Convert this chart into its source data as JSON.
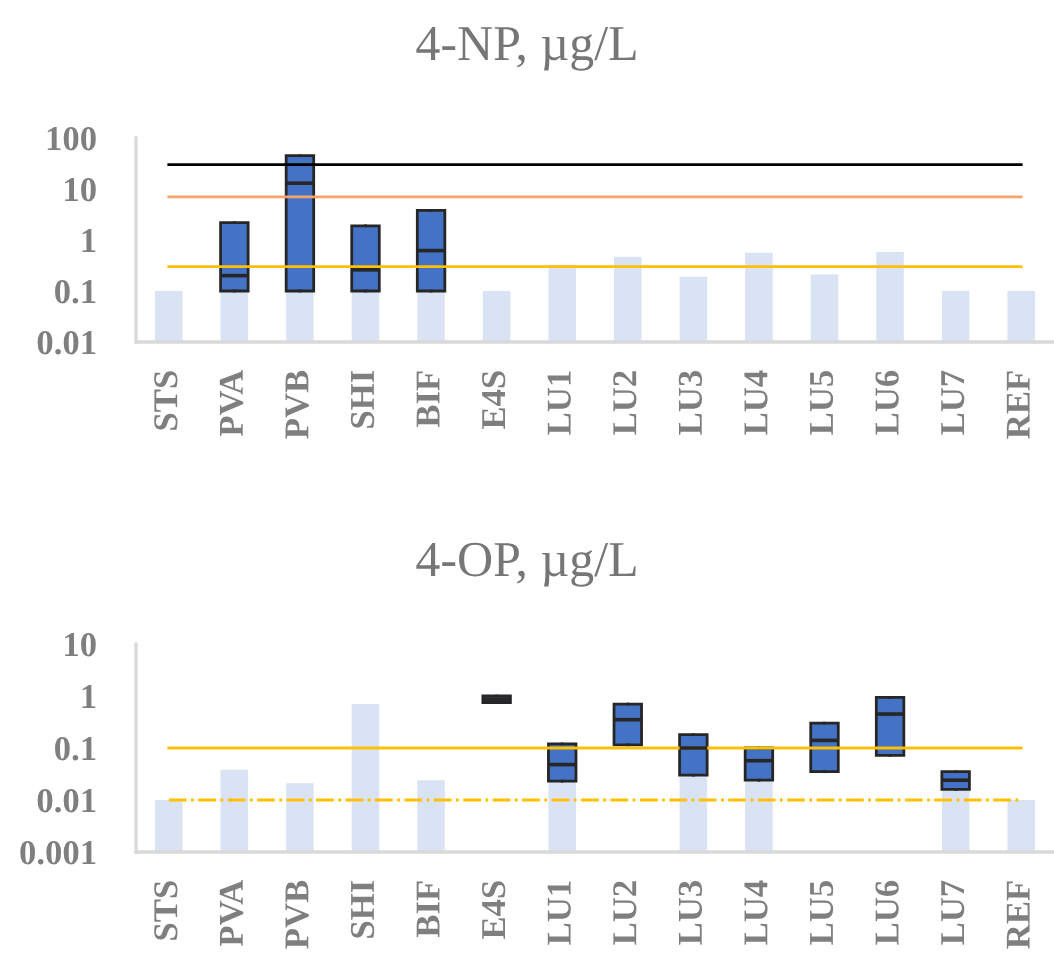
{
  "chart_data": [
    {
      "type": "bar",
      "title": "4-NP, µg/L",
      "categories": [
        "STS",
        "PVA",
        "PVB",
        "SHI",
        "BIF",
        "E4S",
        "LU1",
        "LU2",
        "LU3",
        "LU4",
        "LU5",
        "LU6",
        "LU7",
        "REF"
      ],
      "log": true,
      "ylim": [
        0.01,
        100
      ],
      "yticks": [
        0.01,
        0.1,
        1,
        10,
        100
      ],
      "series": [
        {
          "color": "#dae3f3",
          "values": [
            0.1,
            0.1,
            0.1,
            0.1,
            0.1,
            0.1,
            0.32,
            0.47,
            0.19,
            0.56,
            0.21,
            0.58,
            0.1,
            0.1
          ]
        },
        {
          "type": "box",
          "color": "#4472c4",
          "boxes": [
            null,
            {
              "low": 0.1,
              "q1": 0.1,
              "median": 0.2,
              "q3": 2.2,
              "high": 2.2
            },
            {
              "low": 0.1,
              "q1": 0.1,
              "median": 13,
              "q3": 45,
              "high": 45
            },
            {
              "low": 0.1,
              "q1": 0.1,
              "median": 0.26,
              "q3": 1.9,
              "high": 1.9
            },
            {
              "low": 0.1,
              "q1": 0.1,
              "median": 0.62,
              "q3": 3.8,
              "high": 3.8
            },
            null,
            null,
            null,
            null,
            null,
            null,
            null,
            null,
            null
          ]
        }
      ],
      "ref_lines": [
        {
          "axis": "y",
          "value": 30,
          "color": "#000000",
          "line_style": "solid"
        },
        {
          "axis": "y",
          "value": 7,
          "color": "#f4a46a",
          "line_style": "solid"
        },
        {
          "axis": "y",
          "value": 0.3,
          "color": "#ffc000",
          "line_style": "solid"
        }
      ]
    },
    {
      "type": "bar",
      "title": "4-OP, µg/L",
      "categories": [
        "STS",
        "PVA",
        "PVB",
        "SHI",
        "BIF",
        "E4S",
        "LU1",
        "LU2",
        "LU3",
        "LU4",
        "LU5",
        "LU6",
        "LU7",
        "REF"
      ],
      "log": true,
      "ylim": [
        0.001,
        10
      ],
      "yticks": [
        0.001,
        0.01,
        0.1,
        1,
        10
      ],
      "series": [
        {
          "color": "#dae3f3",
          "values": [
            0.01,
            0.038,
            0.021,
            0.7,
            0.024,
            null,
            0.023,
            null,
            0.03,
            0.024,
            null,
            null,
            0.016,
            0.01
          ]
        },
        {
          "type": "box",
          "color": "#4472c4",
          "boxes": [
            null,
            null,
            null,
            null,
            null,
            {
              "low": 0.75,
              "q1": 0.75,
              "median": 0.87,
              "q3": 1.0,
              "high": 1.0
            },
            {
              "low": 0.023,
              "q1": 0.023,
              "median": 0.048,
              "q3": 0.12,
              "high": 0.12
            },
            {
              "low": 0.115,
              "q1": 0.115,
              "median": 0.35,
              "q3": 0.7,
              "high": 0.7
            },
            {
              "low": 0.03,
              "q1": 0.03,
              "median": 0.1,
              "q3": 0.18,
              "high": 0.18
            },
            {
              "low": 0.024,
              "q1": 0.024,
              "median": 0.057,
              "q3": 0.1,
              "high": 0.1
            },
            {
              "low": 0.035,
              "q1": 0.035,
              "median": 0.14,
              "q3": 0.3,
              "high": 0.3
            },
            {
              "low": 0.072,
              "q1": 0.072,
              "median": 0.45,
              "q3": 0.94,
              "high": 0.94
            },
            {
              "low": 0.016,
              "q1": 0.016,
              "median": 0.024,
              "q3": 0.035,
              "high": 0.035
            },
            null
          ]
        }
      ],
      "ref_lines": [
        {
          "axis": "y",
          "value": 0.1,
          "color": "#ffc000",
          "line_style": "solid"
        },
        {
          "axis": "y",
          "value": 0.01,
          "color": "#ffc000",
          "line_style": "dashdot"
        }
      ]
    }
  ]
}
